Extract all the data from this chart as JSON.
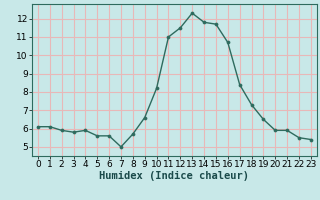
{
  "x": [
    0,
    1,
    2,
    3,
    4,
    5,
    6,
    7,
    8,
    9,
    10,
    11,
    12,
    13,
    14,
    15,
    16,
    17,
    18,
    19,
    20,
    21,
    22,
    23
  ],
  "y": [
    6.1,
    6.1,
    5.9,
    5.8,
    5.9,
    5.6,
    5.6,
    5.0,
    5.7,
    6.6,
    8.2,
    11.0,
    11.5,
    12.3,
    11.8,
    11.7,
    10.7,
    8.4,
    7.3,
    6.5,
    5.9,
    5.9,
    5.5,
    5.4
  ],
  "line_color": "#2e6b5e",
  "marker_color": "#2e6b5e",
  "bg_color": "#c8e8e8",
  "grid_color_major": "#e8b8b8",
  "grid_color_minor": "#ffffff",
  "xlabel": "Humidex (Indice chaleur)",
  "xlim": [
    -0.5,
    23.5
  ],
  "ylim": [
    4.5,
    12.8
  ],
  "yticks": [
    5,
    6,
    7,
    8,
    9,
    10,
    11,
    12
  ],
  "xticks": [
    0,
    1,
    2,
    3,
    4,
    5,
    6,
    7,
    8,
    9,
    10,
    11,
    12,
    13,
    14,
    15,
    16,
    17,
    18,
    19,
    20,
    21,
    22,
    23
  ],
  "font_size": 6.5,
  "label_font_size": 7.5
}
